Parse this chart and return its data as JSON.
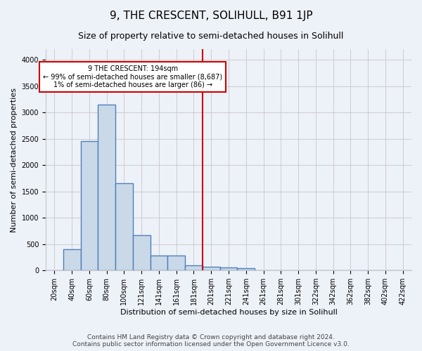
{
  "title": "9, THE CRESCENT, SOLIHULL, B91 1JP",
  "subtitle": "Size of property relative to semi-detached houses in Solihull",
  "xlabel": "Distribution of semi-detached houses by size in Solihull",
  "ylabel": "Number of semi-detached properties",
  "bin_labels": [
    "20sqm",
    "40sqm",
    "60sqm",
    "80sqm",
    "100sqm",
    "121sqm",
    "141sqm",
    "161sqm",
    "181sqm",
    "201sqm",
    "221sqm",
    "241sqm",
    "261sqm",
    "281sqm",
    "301sqm",
    "322sqm",
    "342sqm",
    "362sqm",
    "382sqm",
    "402sqm",
    "422sqm"
  ],
  "bar_values": [
    0,
    400,
    2450,
    3150,
    1650,
    670,
    290,
    290,
    100,
    65,
    55,
    40,
    10,
    5,
    5,
    0,
    0,
    0,
    0,
    0,
    0
  ],
  "bar_color": "#c9d9e8",
  "bar_edge_color": "#4f7fbf",
  "bar_edge_width": 1.0,
  "vline_bin_index": 9,
  "vline_color": "#cc0000",
  "annotation_line1": "9 THE CRESCENT: 194sqm",
  "annotation_line2": "← 99% of semi-detached houses are smaller (8,687)",
  "annotation_line3": "1% of semi-detached houses are larger (86) →",
  "annotation_box_color": "#cc0000",
  "ylim": [
    0,
    4200
  ],
  "yticks": [
    0,
    500,
    1000,
    1500,
    2000,
    2500,
    3000,
    3500,
    4000
  ],
  "grid_color": "#c8c8c8",
  "bg_color": "#edf1f8",
  "footer_line1": "Contains HM Land Registry data © Crown copyright and database right 2024.",
  "footer_line2": "Contains public sector information licensed under the Open Government Licence v3.0.",
  "title_fontsize": 11,
  "subtitle_fontsize": 9,
  "axis_label_fontsize": 8,
  "tick_fontsize": 7,
  "footer_fontsize": 6.5
}
